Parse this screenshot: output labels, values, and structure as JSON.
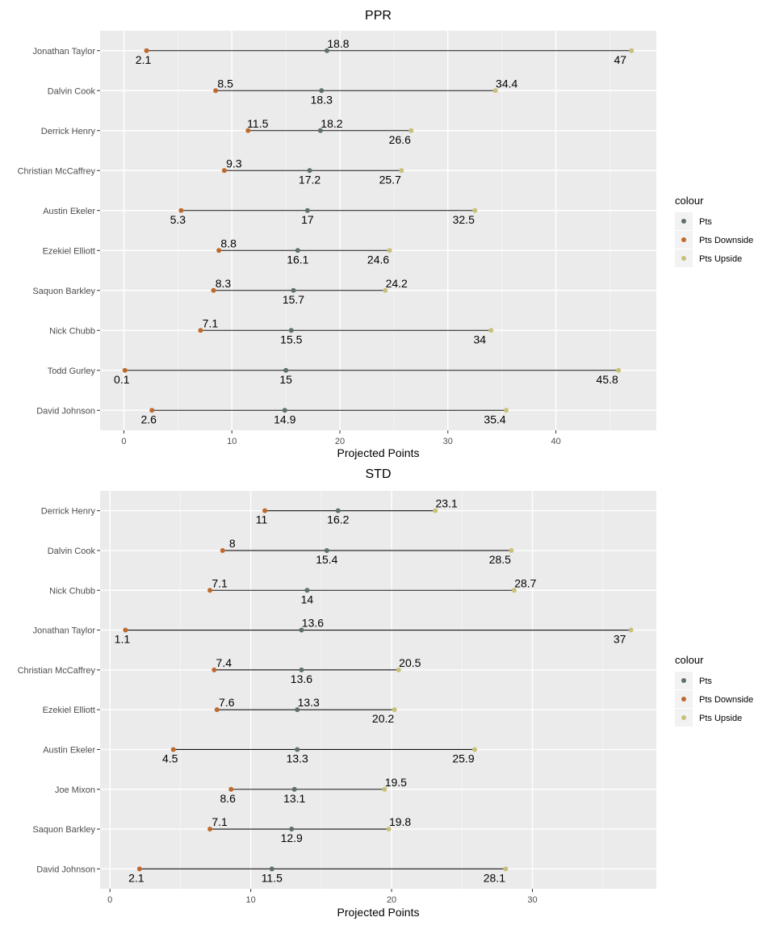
{
  "chart_data": [
    {
      "type": "dumbbell",
      "title": "PPR",
      "xlabel": "Projected Points",
      "ylabel": "",
      "xlim": [
        -2.2,
        49.3
      ],
      "xticks": [
        0,
        10,
        20,
        30,
        40
      ],
      "grid": true,
      "legend": {
        "title": "colour",
        "position": "right",
        "entries": [
          {
            "name": "Pts",
            "color": "#5f7066"
          },
          {
            "name": "Pts Downside",
            "color": "#bf6a2d"
          },
          {
            "name": "Pts Upside",
            "color": "#c8c07a"
          }
        ]
      },
      "players": [
        {
          "name": "Jonathan Taylor",
          "pts": 18.8,
          "downside": 2.1,
          "upside": 47,
          "labels": {
            "pts": "18.8",
            "downside": "2.1",
            "upside": "47"
          }
        },
        {
          "name": "Dalvin Cook",
          "pts": 18.3,
          "downside": 8.5,
          "upside": 34.4,
          "labels": {
            "pts": "18.3",
            "downside": "8.5",
            "upside": "34.4"
          }
        },
        {
          "name": "Derrick Henry",
          "pts": 18.2,
          "downside": 11.5,
          "upside": 26.6,
          "labels": {
            "pts": "18.2",
            "downside": "11.5",
            "upside": "26.6"
          }
        },
        {
          "name": "Christian McCaffrey",
          "pts": 17.2,
          "downside": 9.3,
          "upside": 25.7,
          "labels": {
            "pts": "17.2",
            "downside": "9.3",
            "upside": "25.7"
          }
        },
        {
          "name": "Austin Ekeler",
          "pts": 17,
          "downside": 5.3,
          "upside": 32.5,
          "labels": {
            "pts": "17",
            "downside": "5.3",
            "upside": "32.5"
          }
        },
        {
          "name": "Ezekiel Elliott",
          "pts": 16.1,
          "downside": 8.8,
          "upside": 24.6,
          "labels": {
            "pts": "16.1",
            "downside": "8.8",
            "upside": "24.6"
          }
        },
        {
          "name": "Saquon Barkley",
          "pts": 15.7,
          "downside": 8.3,
          "upside": 24.2,
          "labels": {
            "pts": "15.7",
            "downside": "8.3",
            "upside": "24.2"
          }
        },
        {
          "name": "Nick Chubb",
          "pts": 15.5,
          "downside": 7.1,
          "upside": 34,
          "labels": {
            "pts": "15.5",
            "downside": "7.1",
            "upside": "34"
          }
        },
        {
          "name": "Todd Gurley",
          "pts": 15,
          "downside": 0.1,
          "upside": 45.8,
          "labels": {
            "pts": "15",
            "downside": "0.1",
            "upside": "45.8"
          }
        },
        {
          "name": "David Johnson",
          "pts": 14.9,
          "downside": 2.6,
          "upside": 35.4,
          "labels": {
            "pts": "14.9",
            "downside": "2.6",
            "upside": "35.4"
          }
        }
      ]
    },
    {
      "type": "dumbbell",
      "title": "STD",
      "xlabel": "Projected Points",
      "ylabel": "",
      "xlim": [
        -0.7,
        38.8
      ],
      "xticks": [
        0,
        10,
        20,
        30
      ],
      "grid": true,
      "legend": {
        "title": "colour",
        "position": "right",
        "entries": [
          {
            "name": "Pts",
            "color": "#5f7066"
          },
          {
            "name": "Pts Downside",
            "color": "#bf6a2d"
          },
          {
            "name": "Pts Upside",
            "color": "#c8c07a"
          }
        ]
      },
      "players": [
        {
          "name": "Derrick Henry",
          "pts": 16.2,
          "downside": 11,
          "upside": 23.1,
          "labels": {
            "pts": "16.2",
            "downside": "11",
            "upside": "23.1"
          }
        },
        {
          "name": "Dalvin Cook",
          "pts": 15.4,
          "downside": 8,
          "upside": 28.5,
          "labels": {
            "pts": "15.4",
            "downside": "8",
            "upside": "28.5"
          }
        },
        {
          "name": "Nick Chubb",
          "pts": 14,
          "downside": 7.1,
          "upside": 28.7,
          "labels": {
            "pts": "14",
            "downside": "7.1",
            "upside": "28.7"
          }
        },
        {
          "name": "Jonathan Taylor",
          "pts": 13.6,
          "downside": 1.1,
          "upside": 37,
          "labels": {
            "pts": "13.6",
            "downside": "1.1",
            "upside": "37"
          }
        },
        {
          "name": "Christian McCaffrey",
          "pts": 13.6,
          "downside": 7.4,
          "upside": 20.5,
          "labels": {
            "pts": "13.6",
            "downside": "7.4",
            "upside": "20.5"
          }
        },
        {
          "name": "Ezekiel Elliott",
          "pts": 13.3,
          "downside": 7.6,
          "upside": 20.2,
          "labels": {
            "pts": "13.3",
            "downside": "7.6",
            "upside": "20.2"
          }
        },
        {
          "name": "Austin Ekeler",
          "pts": 13.3,
          "downside": 4.5,
          "upside": 25.9,
          "labels": {
            "pts": "13.3",
            "downside": "4.5",
            "upside": "25.9"
          }
        },
        {
          "name": "Joe Mixon",
          "pts": 13.1,
          "downside": 8.6,
          "upside": 19.5,
          "labels": {
            "pts": "13.1",
            "downside": "8.6",
            "upside": "19.5"
          }
        },
        {
          "name": "Saquon Barkley",
          "pts": 12.9,
          "downside": 7.1,
          "upside": 19.8,
          "labels": {
            "pts": "12.9",
            "downside": "7.1",
            "upside": "19.8"
          }
        },
        {
          "name": "David Johnson",
          "pts": 11.5,
          "downside": 2.1,
          "upside": 28.1,
          "labels": {
            "pts": "11.5",
            "downside": "2.1",
            "upside": "28.1"
          }
        }
      ]
    }
  ]
}
